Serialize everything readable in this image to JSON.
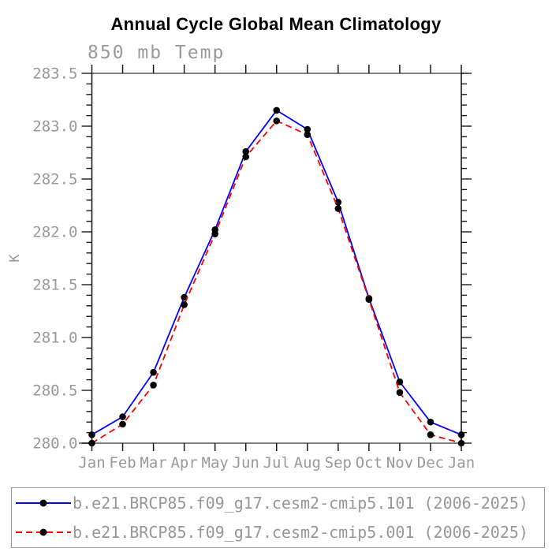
{
  "chart_data": {
    "type": "line",
    "title": "Annual Cycle Global Mean Climatology",
    "subtitle": "850 mb Temp",
    "ylabel": "K",
    "categories": [
      "Jan",
      "Feb",
      "Mar",
      "Apr",
      "May",
      "Jun",
      "Jul",
      "Aug",
      "Sep",
      "Oct",
      "Nov",
      "Dec",
      "Jan"
    ],
    "series": [
      {
        "name": "b.e21.BRCP85.f09_g17.cesm2-cmip5.101 (2006-2025)",
        "color": "#0000ff",
        "line_style": "solid",
        "marker": "circle",
        "marker_color": "#000000",
        "values": [
          280.08,
          280.25,
          280.67,
          281.38,
          282.02,
          282.76,
          283.15,
          282.97,
          282.28,
          281.37,
          280.58,
          280.2,
          280.08
        ]
      },
      {
        "name": "b.e21.BRCP85.f09_g17.cesm2-cmip5.001 (2006-2025)",
        "color": "#ff0000",
        "line_style": "dashed",
        "marker": "circle",
        "marker_color": "#000000",
        "values": [
          280.0,
          280.18,
          280.55,
          281.31,
          281.98,
          282.71,
          283.05,
          282.92,
          282.22,
          281.36,
          280.48,
          280.08,
          280.0
        ]
      }
    ],
    "ylim": [
      280.0,
      283.5
    ],
    "ytick_major": 0.5,
    "ytick_minor": 0.1,
    "grid": false,
    "legend_position": "bottom",
    "text_color": "#999999"
  }
}
